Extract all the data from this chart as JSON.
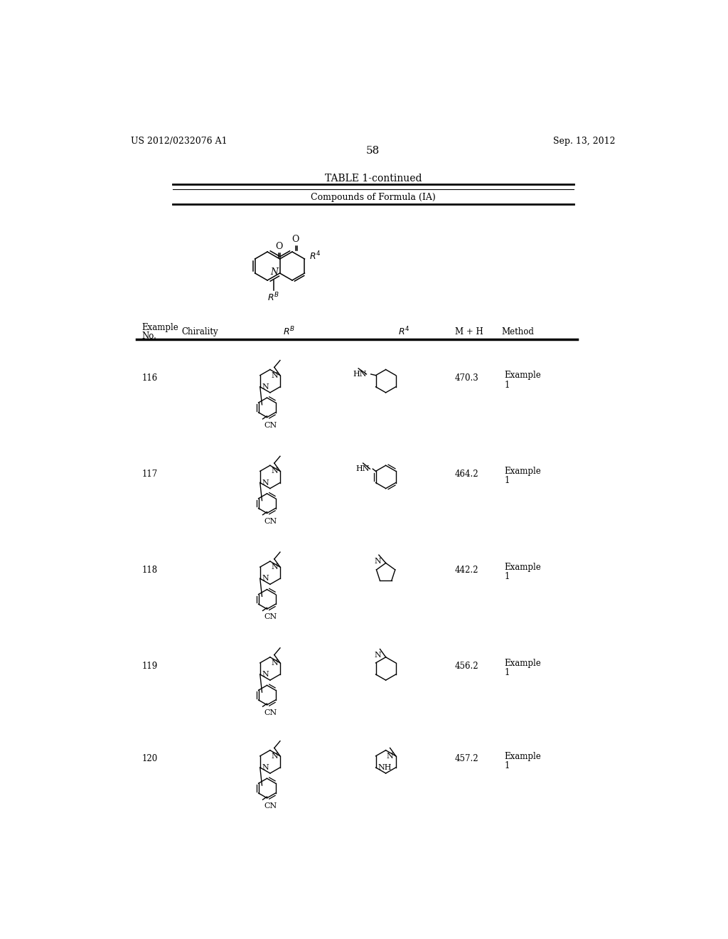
{
  "bg_color": "#ffffff",
  "page_number": "58",
  "patent_left": "US 2012/0232076 A1",
  "patent_right": "Sep. 13, 2012",
  "table_title": "TABLE 1-continued",
  "table_subtitle": "Compounds of Formula (IA)",
  "rows": [
    {
      "no": "116",
      "mh": "470.3",
      "method": "Example\n1"
    },
    {
      "no": "117",
      "mh": "464.2",
      "method": "Example\n1"
    },
    {
      "no": "118",
      "mh": "442.2",
      "method": "Example\n1"
    },
    {
      "no": "119",
      "mh": "456.2",
      "method": "Example\n1"
    },
    {
      "no": "120",
      "mh": "457.2",
      "method": "Example\n1"
    }
  ]
}
